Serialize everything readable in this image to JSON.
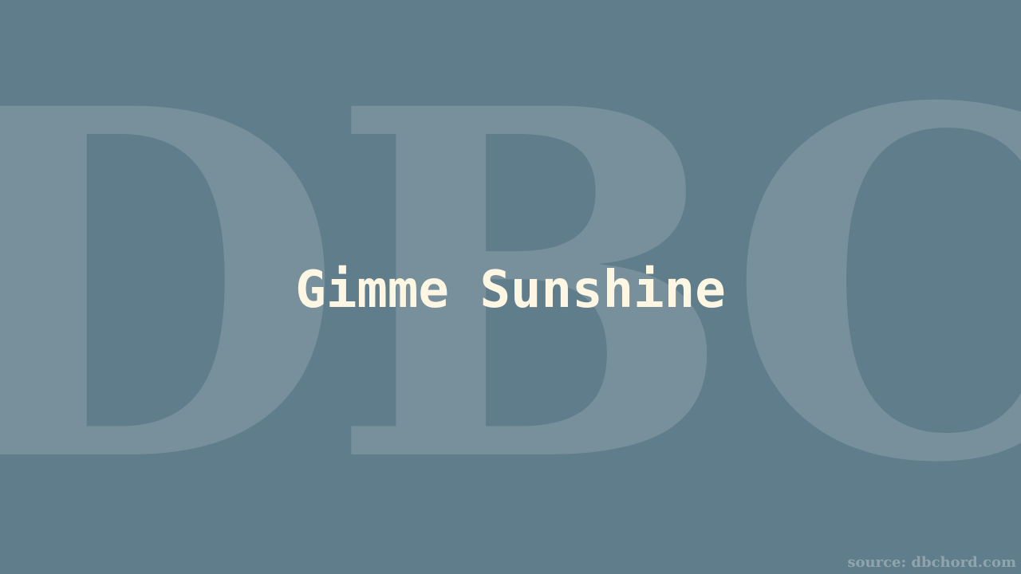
{
  "background_color": "#607d8b",
  "watermark": {
    "text": "DBC",
    "color": "rgba(255,255,255,0.15)"
  },
  "title": {
    "text": "Gimme Sunshine",
    "color": "#fdf6e3"
  },
  "source": {
    "text": "source: dbchord.com"
  }
}
